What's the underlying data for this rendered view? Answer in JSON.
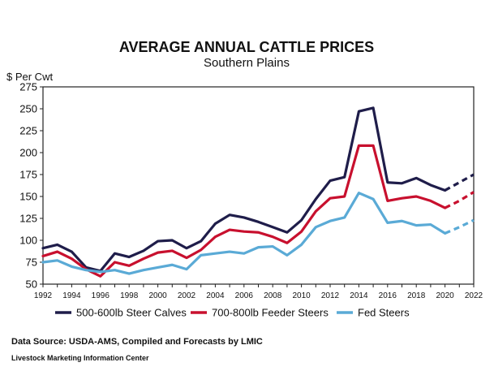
{
  "chart_data": {
    "type": "line",
    "title": "AVERAGE ANNUAL CATTLE PRICES",
    "subtitle": "Southern Plains",
    "ylabel": "$ Per Cwt",
    "xlabel": "",
    "ylim": [
      50,
      275
    ],
    "yticks": [
      50,
      75,
      100,
      125,
      150,
      175,
      200,
      225,
      250,
      275
    ],
    "xlim": [
      1992,
      2022
    ],
    "xticks": [
      1992,
      1994,
      1996,
      1998,
      2000,
      2002,
      2004,
      2006,
      2008,
      2010,
      2012,
      2014,
      2016,
      2018,
      2020,
      2022
    ],
    "grid": false,
    "legend_position": "bottom",
    "x": [
      1992,
      1993,
      1994,
      1995,
      1996,
      1997,
      1998,
      1999,
      2000,
      2001,
      2002,
      2003,
      2004,
      2005,
      2006,
      2007,
      2008,
      2009,
      2010,
      2011,
      2012,
      2013,
      2014,
      2015,
      2016,
      2017,
      2018,
      2019,
      2020,
      2021,
      2022
    ],
    "forecast_start": 2020,
    "series": [
      {
        "name": "500-600lb Steer Calves",
        "color": "#1f1d4a",
        "values": [
          91,
          95,
          87,
          69,
          65,
          85,
          81,
          88,
          99,
          100,
          91,
          99,
          119,
          129,
          126,
          121,
          115,
          109,
          123,
          147,
          168,
          172,
          247,
          251,
          166,
          165,
          171,
          163,
          157,
          166,
          175
        ]
      },
      {
        "name": "700-800lb Feeder Steers",
        "color": "#c8102e",
        "values": [
          82,
          87,
          79,
          67,
          59,
          75,
          71,
          79,
          86,
          88,
          80,
          89,
          104,
          112,
          110,
          109,
          104,
          97,
          110,
          133,
          148,
          150,
          208,
          208,
          145,
          148,
          150,
          145,
          137,
          145,
          155
        ]
      },
      {
        "name": "Fed Steers",
        "color": "#5aaad6",
        "values": [
          75,
          77,
          70,
          66,
          64,
          66,
          62,
          66,
          69,
          72,
          67,
          83,
          85,
          87,
          85,
          92,
          93,
          83,
          95,
          115,
          122,
          126,
          154,
          147,
          120,
          122,
          117,
          118,
          108,
          115,
          123
        ]
      }
    ]
  },
  "footer": {
    "source": "Data Source:  USDA-AMS, Compiled and Forecasts by LMIC",
    "organization": "Livestock Marketing Information Center"
  }
}
